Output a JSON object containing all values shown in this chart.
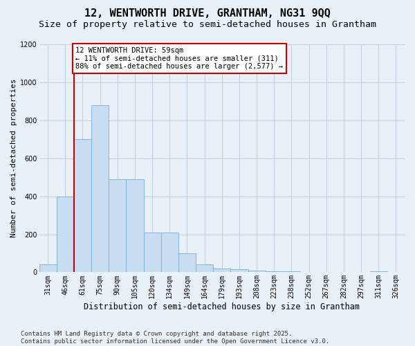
{
  "title_line1": "12, WENTWORTH DRIVE, GRANTHAM, NG31 9QQ",
  "title_line2": "Size of property relative to semi-detached houses in Grantham",
  "xlabel": "Distribution of semi-detached houses by size in Grantham",
  "ylabel": "Number of semi-detached properties",
  "categories": [
    "31sqm",
    "46sqm",
    "61sqm",
    "75sqm",
    "90sqm",
    "105sqm",
    "120sqm",
    "134sqm",
    "149sqm",
    "164sqm",
    "179sqm",
    "193sqm",
    "208sqm",
    "223sqm",
    "238sqm",
    "252sqm",
    "267sqm",
    "282sqm",
    "297sqm",
    "311sqm",
    "326sqm"
  ],
  "values": [
    40,
    400,
    700,
    880,
    490,
    490,
    210,
    210,
    100,
    40,
    20,
    15,
    10,
    5,
    5,
    3,
    3,
    2,
    2,
    5,
    3
  ],
  "bar_color": "#c8ddf0",
  "bar_edge_color": "#7badd4",
  "grid_color": "#c0cfdf",
  "background_color": "#e8f0f8",
  "vline_color": "#cc0000",
  "vline_x": 1.5,
  "annotation_text": "12 WENTWORTH DRIVE: 59sqm\n← 11% of semi-detached houses are smaller (311)\n88% of semi-detached houses are larger (2,577) →",
  "annotation_box_facecolor": "white",
  "annotation_box_edgecolor": "#cc0000",
  "ylim": [
    0,
    1200
  ],
  "yticks": [
    0,
    200,
    400,
    600,
    800,
    1000,
    1200
  ],
  "footer_text": "Contains HM Land Registry data © Crown copyright and database right 2025.\nContains public sector information licensed under the Open Government Licence v3.0.",
  "title_fontsize": 11,
  "subtitle_fontsize": 9.5,
  "ylabel_fontsize": 8,
  "xlabel_fontsize": 8.5,
  "tick_fontsize": 7,
  "annotation_fontsize": 7.5,
  "footer_fontsize": 6.5
}
